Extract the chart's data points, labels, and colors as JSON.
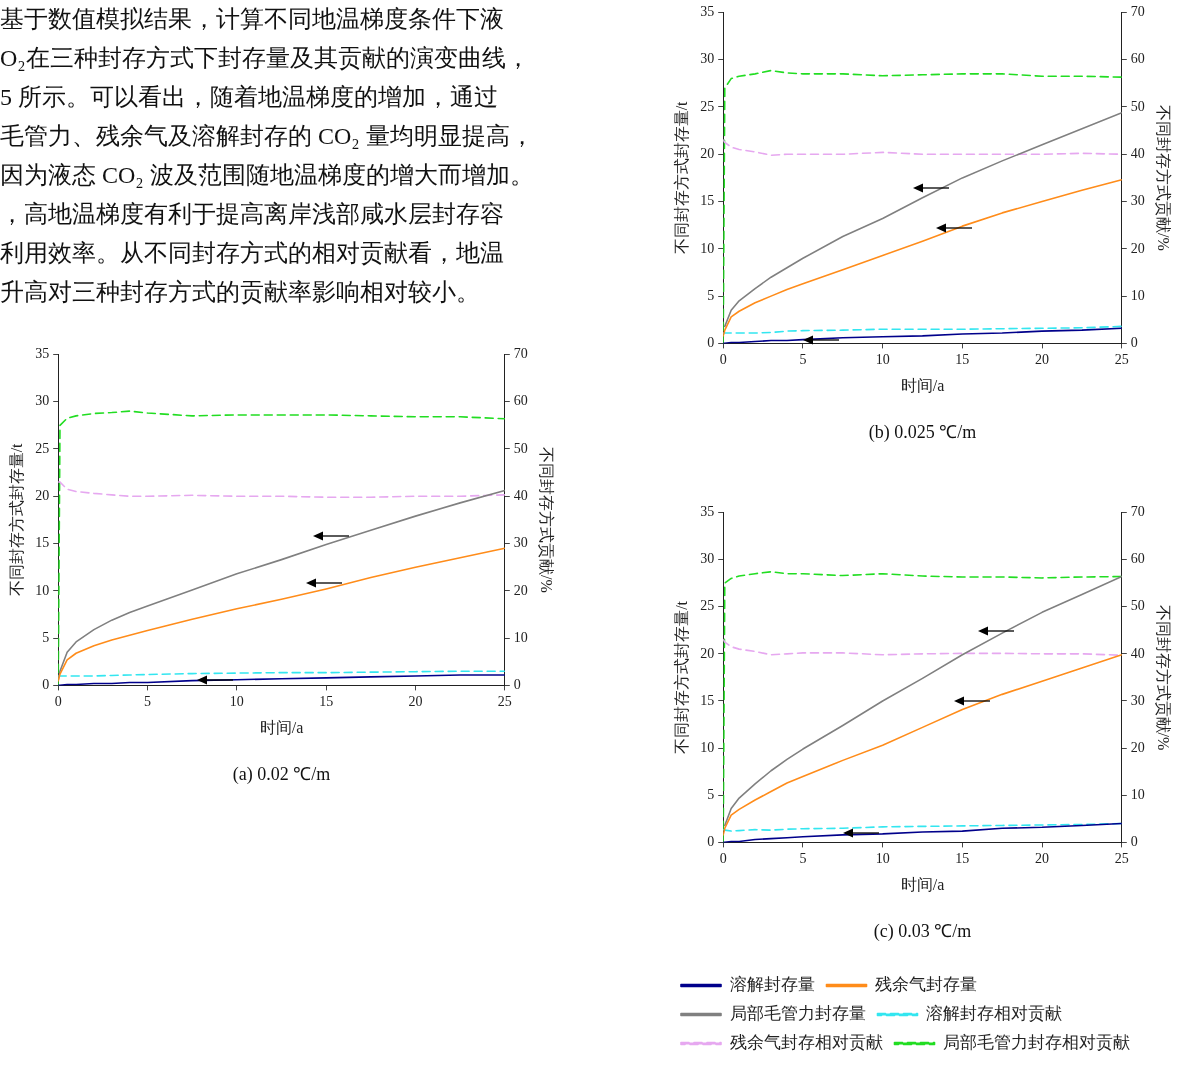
{
  "chart_data": [
    {
      "type": "line",
      "title": "(a) 0.02 ℃/m",
      "xlabel": "时间/a",
      "ylabel": "不同封存方式封存量/t",
      "y2label": "不同封存方式贡献/%",
      "annotations": [
        "基于数值模拟结果，计算不同地温梯度条件下液",
        "O₂在三种封存方式下封存量及其贡献的演变曲线，",
        " 5 所示。可以看出，随着地温梯度的增加，通过",
        "毛管力、残余气及溶解封存的 CO₂ 量均明显提高，",
        "因为液态 CO₂ 波及范围随地温梯度的增大而增加。",
        "，高地温梯度有利于提高离岸浅部咸水层封存容",
        "利用效率。从不同封存方式的相对贡献看，地温",
        "升高对三种封存方式的贡献率影响相对较小。"
      ],
      "x": [
        0,
        0.1,
        0.5,
        1,
        2,
        3,
        4,
        5,
        7.5,
        10,
        12.5,
        15,
        17.5,
        20,
        22.5,
        25
      ],
      "xlim": [
        0,
        25
      ],
      "xticks": [
        0,
        5,
        10,
        15,
        20,
        25
      ],
      "ylim": [
        0,
        35
      ],
      "yticks": [
        0,
        5,
        10,
        15,
        20,
        25,
        30,
        35
      ],
      "y2lim": [
        0,
        70
      ],
      "y2ticks": [
        0,
        10,
        20,
        30,
        40,
        50,
        60,
        70
      ],
      "grid": false,
      "legend": false,
      "marker": "none",
      "series": [
        {
          "color": "#00008b",
          "line_style": "solid",
          "values": [
            0,
            0,
            0.1,
            0.1,
            0.2,
            0.2,
            0.3,
            0.3,
            0.5,
            0.6,
            0.7,
            0.8,
            0.9,
            1.0,
            1.1,
            1.1
          ]
        },
        {
          "color": "#ff8c1a",
          "line_style": "solid",
          "values": [
            0.5,
            1.2,
            2.7,
            3.4,
            4.2,
            4.8,
            5.3,
            5.8,
            7.0,
            8.1,
            9.1,
            10.2,
            11.4,
            12.5,
            13.5,
            14.5
          ]
        },
        {
          "color": "#808080",
          "line_style": "solid",
          "values": [
            0.5,
            1.5,
            3.5,
            4.6,
            5.9,
            6.9,
            7.7,
            8.4,
            10.1,
            11.8,
            13.3,
            14.9,
            16.4,
            17.9,
            19.3,
            20.6
          ]
        },
        {
          "color": "#33e6f0",
          "line_style": "dashed",
          "axis": "y2",
          "values": [
            2.0,
            2.0,
            2.0,
            2.0,
            2.0,
            2.1,
            2.2,
            2.3,
            2.5,
            2.6,
            2.7,
            2.7,
            2.8,
            2.9,
            3.0,
            3.0
          ]
        },
        {
          "color": "#e6a8f0",
          "line_style": "dashed",
          "axis": "y2",
          "values": [
            43,
            43,
            41.5,
            41,
            40.6,
            40.3,
            40,
            40,
            40.2,
            40,
            40,
            39.8,
            39.8,
            40,
            40,
            40.3
          ]
        },
        {
          "color": "#22dd22",
          "line_style": "dashed",
          "axis": "y2",
          "values": [
            0,
            55,
            56.5,
            57,
            57.5,
            57.7,
            58,
            57.6,
            57,
            57.2,
            57.2,
            57.2,
            57,
            56.8,
            56.8,
            56.4
          ]
        }
      ]
    },
    {
      "type": "line",
      "title": "(b) 0.025 ℃/m",
      "xlabel": "时间/a",
      "ylabel": "不同封存方式封存量/t",
      "y2label": "不同封存方式贡献/%",
      "x": [
        0,
        0.1,
        0.5,
        1,
        2,
        3,
        4,
        5,
        7.5,
        10,
        12.5,
        15,
        17.5,
        20,
        22.5,
        25
      ],
      "xlim": [
        0,
        25
      ],
      "xticks": [
        0,
        5,
        10,
        15,
        20,
        25
      ],
      "ylim": [
        0,
        35
      ],
      "yticks": [
        0,
        5,
        10,
        15,
        20,
        25,
        30,
        35
      ],
      "y2lim": [
        0,
        70
      ],
      "y2ticks": [
        0,
        10,
        20,
        30,
        40,
        50,
        60,
        70
      ],
      "grid": false,
      "legend": false,
      "marker": "none",
      "series": [
        {
          "color": "#00008b",
          "line_style": "solid",
          "values": [
            0,
            0,
            0.1,
            0.1,
            0.2,
            0.3,
            0.3,
            0.4,
            0.6,
            0.7,
            0.8,
            1.0,
            1.1,
            1.3,
            1.4,
            1.6
          ]
        },
        {
          "color": "#ff8c1a",
          "line_style": "solid",
          "values": [
            0.8,
            1.4,
            2.8,
            3.4,
            4.3,
            5.0,
            5.7,
            6.3,
            7.8,
            9.3,
            10.8,
            12.4,
            13.8,
            15.0,
            16.2,
            17.3
          ]
        },
        {
          "color": "#808080",
          "line_style": "solid",
          "values": [
            null,
            1.8,
            3.5,
            4.5,
            5.8,
            7.0,
            8.0,
            9.0,
            11.3,
            13.2,
            15.4,
            17.5,
            19.3,
            21.0,
            22.7,
            24.4
          ]
        },
        {
          "color": "#33e6f0",
          "line_style": "dashed",
          "axis": "y2",
          "values": [
            2.2,
            2.2,
            2.2,
            2.2,
            2.2,
            2.3,
            2.6,
            2.7,
            2.8,
            3.0,
            3.0,
            3.0,
            3.1,
            3.2,
            3.3,
            3.6
          ]
        },
        {
          "color": "#e6a8f0",
          "line_style": "dashed",
          "axis": "y2",
          "values": [
            43,
            42.5,
            41.5,
            41,
            40.5,
            39.8,
            40,
            40,
            40,
            40.4,
            40,
            40,
            40,
            40,
            40.2,
            40
          ]
        },
        {
          "color": "#22dd22",
          "line_style": "dashed",
          "axis": "y2",
          "values": [
            0,
            54,
            56,
            56.5,
            57,
            57.7,
            57.2,
            57,
            57,
            56.6,
            56.8,
            57,
            57,
            56.5,
            56.5,
            56.3
          ]
        }
      ]
    },
    {
      "type": "line",
      "title": "(c) 0.03 ℃/m",
      "xlabel": "时间/a",
      "ylabel": "不同封存方式封存量/t",
      "y2label": "不同封存方式贡献/%",
      "x": [
        0,
        0.1,
        0.5,
        1,
        2,
        3,
        4,
        5,
        7.5,
        10,
        12.5,
        15,
        17.5,
        20,
        22.5,
        25
      ],
      "xlim": [
        0,
        25
      ],
      "xticks": [
        0,
        5,
        10,
        15,
        20,
        25
      ],
      "ylim": [
        0,
        35
      ],
      "yticks": [
        0,
        5,
        10,
        15,
        20,
        25,
        30,
        35
      ],
      "y2lim": [
        0,
        70
      ],
      "y2ticks": [
        0,
        10,
        20,
        30,
        40,
        50,
        60,
        70
      ],
      "grid": false,
      "legend": "bottom",
      "marker": "none",
      "series": [
        {
          "name": "溶解封存量",
          "color": "#00008b",
          "line_style": "solid",
          "values": [
            0,
            0,
            0.1,
            0.1,
            0.3,
            0.4,
            0.5,
            0.6,
            0.8,
            0.9,
            1.1,
            1.2,
            1.5,
            1.6,
            1.8,
            2.0
          ]
        },
        {
          "name": "残余气封存量",
          "color": "#ff8c1a",
          "line_style": "solid",
          "values": [
            0.8,
            1.5,
            2.9,
            3.5,
            4.5,
            5.4,
            6.3,
            7.0,
            8.7,
            10.3,
            12.2,
            14.1,
            15.7,
            17.1,
            18.5,
            19.9
          ]
        },
        {
          "name": "局部毛管力封存量",
          "color": "#808080",
          "line_style": "solid",
          "values": [
            null,
            1.8,
            3.6,
            4.7,
            6.2,
            7.6,
            8.8,
            9.9,
            12.4,
            15.0,
            17.4,
            19.9,
            22.2,
            24.4,
            26.3,
            28.2
          ]
        },
        {
          "name": "溶解封存相对贡献",
          "color": "#33e6f0",
          "line_style": "dashed",
          "axis": "y2",
          "values": [
            2.7,
            2.6,
            2.4,
            2.5,
            2.7,
            2.6,
            2.8,
            2.9,
            3.0,
            3.3,
            3.4,
            3.5,
            3.6,
            3.7,
            3.8,
            4.0
          ]
        },
        {
          "name": "残余气封存相对贡献",
          "color": "#e6a8f0",
          "line_style": "dashed",
          "axis": "y2",
          "values": [
            43,
            42.5,
            41.5,
            41,
            40.5,
            39.8,
            40,
            40.2,
            40.2,
            39.8,
            40,
            40.1,
            40.1,
            40,
            40,
            39.7
          ]
        },
        {
          "name": "局部毛管力封存相对贡献",
          "color": "#22dd22",
          "line_style": "dashed",
          "axis": "y2",
          "values": [
            0,
            55,
            56,
            56.5,
            57,
            57.4,
            57,
            57,
            56.6,
            57,
            56.5,
            56.3,
            56.3,
            56.1,
            56.3,
            56.4
          ]
        }
      ]
    }
  ]
}
